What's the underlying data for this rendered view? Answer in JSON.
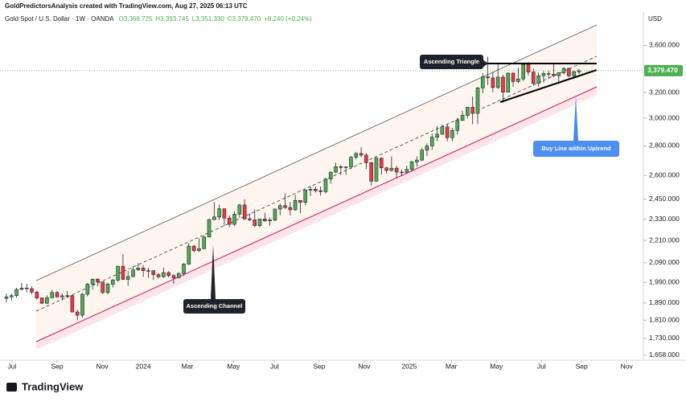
{
  "chart_data": {
    "type": "candlestick",
    "attribution": "GoldPredictorsAnalysis created with TradingView.com, Aug 27, 2025 06:13 UTC",
    "title": "Gold Spot / U.S. Dollar · 1W · OANDA",
    "ohlc_labels": [
      "O3,368.725",
      "H3,393.745",
      "L3,351.330",
      "C3,379.470"
    ],
    "change_label": "+8.240 (+0.24%)",
    "currency": "USD",
    "brand": "TradingView",
    "annotations": [
      "Ascending Triangle",
      "Ascending Channel",
      "Buy Line within Uptrend"
    ],
    "last_price": {
      "value": 3379.47,
      "label": "3,379.470"
    },
    "up_color": "#4caf50",
    "down_color": "#f23645",
    "log_scale": true,
    "ylim": [
      1638,
      3913
    ],
    "yticks": [
      {
        "value": 3600,
        "label": "3,600.000"
      },
      {
        "value": 3200,
        "label": "3,200.000"
      },
      {
        "value": 3000,
        "label": "3,000.000"
      },
      {
        "value": 2800,
        "label": "2,800.000"
      },
      {
        "value": 2600,
        "label": "2,600.000"
      },
      {
        "value": 2450,
        "label": "2,450.000"
      },
      {
        "value": 2330,
        "label": "2,330.000"
      },
      {
        "value": 2210,
        "label": "2,210.000"
      },
      {
        "value": 2090,
        "label": "2,090.000"
      },
      {
        "value": 1990,
        "label": "1,990.000"
      },
      {
        "value": 1890,
        "label": "1,890.000"
      },
      {
        "value": 1810,
        "label": "1,810.000"
      },
      {
        "value": 1730,
        "label": "1,730.000"
      },
      {
        "value": 1658,
        "label": "1,658.000"
      }
    ],
    "xlim": [
      -1.27,
      125.7
    ],
    "xticks": [
      {
        "value": 1.1,
        "label": "Jul"
      },
      {
        "value": 10,
        "label": "Sep"
      },
      {
        "value": 18.9,
        "label": "Nov"
      },
      {
        "value": 27,
        "label": "2024"
      },
      {
        "value": 35.7,
        "label": "Mar"
      },
      {
        "value": 44.8,
        "label": "May"
      },
      {
        "value": 52.9,
        "label": "Jul"
      },
      {
        "value": 61.7,
        "label": "Sep"
      },
      {
        "value": 70.6,
        "label": "Nov"
      },
      {
        "value": 79.5,
        "label": "2025"
      },
      {
        "value": 87.8,
        "label": "Mar"
      },
      {
        "value": 96.7,
        "label": "May"
      },
      {
        "value": 105.6,
        "label": "Jul"
      },
      {
        "value": 113.5,
        "label": "Sep"
      },
      {
        "value": 122.4,
        "label": "Nov"
      }
    ],
    "open": [
      1912,
      1919,
      1925,
      1955,
      1962,
      1959,
      1942,
      1914,
      1889,
      1915,
      1940,
      1919,
      1924,
      1925,
      1848,
      1833,
      1932,
      1981,
      2006,
      1992,
      1940,
      1981,
      2001,
      2072,
      2005,
      2019,
      2053,
      2063,
      2049,
      2049,
      2029,
      2018,
      2039,
      2024,
      2013,
      2035,
      2083,
      2179,
      2155,
      2165,
      2229,
      2329,
      2344,
      2392,
      2337,
      2301,
      2360,
      2415,
      2333,
      2327,
      2293,
      2332,
      2321,
      2326,
      2391,
      2411,
      2400,
      2386,
      2443,
      2431,
      2507,
      2512,
      2503,
      2497,
      2577,
      2622,
      2658,
      2653,
      2656,
      2721,
      2747,
      2736,
      2685,
      2563,
      2715,
      2650,
      2633,
      2648,
      2622,
      2621,
      2640,
      2690,
      2702,
      2770,
      2800,
      2861,
      2883,
      2936,
      2858,
      2910,
      2984,
      3022,
      3084,
      3037,
      3237,
      3327,
      3319,
      3240,
      3325,
      3202,
      3358,
      3289,
      3310,
      3433,
      3368,
      3274,
      3337,
      3355,
      3350,
      3337,
      3362,
      3398,
      3336,
      3368.725
    ],
    "high": [
      1935,
      1935,
      1963,
      1987,
      1982,
      1971,
      1948,
      1917,
      1926,
      1953,
      1947,
      1936,
      1947,
      1928,
      1859,
      1937,
      1987,
      2009,
      2010,
      1993,
      1988,
      2008,
      2075,
      2135,
      2048,
      2071,
      2088,
      2078,
      2063,
      2043,
      2036,
      2065,
      2047,
      2032,
      2041,
      2088,
      2195,
      2185,
      2222,
      2236,
      2332,
      2431,
      2417,
      2395,
      2353,
      2378,
      2422,
      2450,
      2364,
      2388,
      2335,
      2368,
      2340,
      2393,
      2424,
      2484,
      2433,
      2477,
      2441,
      2509,
      2531,
      2529,
      2529,
      2585,
      2625,
      2685,
      2670,
      2661,
      2730,
      2758,
      2790,
      2750,
      2690,
      2721,
      2721,
      2657,
      2726,
      2664,
      2640,
      2665,
      2697,
      2726,
      2786,
      2817,
      2886,
      2942,
      2954,
      2956,
      2930,
      3004,
      3057,
      3086,
      3168,
      3245,
      3358,
      3500,
      3367,
      3435,
      3345,
      3365,
      3368,
      3403,
      3446,
      3452,
      3398,
      3365,
      3375,
      3377,
      3439,
      3363,
      3409,
      3405,
      3379,
      3393.745
    ],
    "low": [
      1893,
      1902,
      1915,
      1952,
      1942,
      1931,
      1906,
      1885,
      1884,
      1913,
      1915,
      1901,
      1913,
      1846,
      1810,
      1823,
      1922,
      1955,
      1971,
      1933,
      1931,
      1965,
      1993,
      2002,
      1973,
      2017,
      2049,
      2017,
      2013,
      2002,
      2010,
      2013,
      2015,
      1984,
      2011,
      2024,
      2079,
      2146,
      2146,
      2163,
      2228,
      2325,
      2326,
      2291,
      2285,
      2291,
      2340,
      2325,
      2320,
      2286,
      2286,
      2316,
      2293,
      2319,
      2353,
      2392,
      2353,
      2381,
      2365,
      2414,
      2470,
      2491,
      2472,
      2485,
      2547,
      2615,
      2603,
      2605,
      2643,
      2707,
      2722,
      2643,
      2536,
      2560,
      2605,
      2613,
      2626,
      2583,
      2596,
      2614,
      2624,
      2657,
      2696,
      2730,
      2773,
      2832,
      2880,
      2832,
      2832,
      2880,
      2982,
      3000,
      2956,
      2957,
      3194,
      3260,
      3202,
      3228,
      3120,
      3205,
      3245,
      3276,
      3294,
      3340,
      3255,
      3247,
      3282,
      3310,
      3325,
      3268,
      3347,
      3324,
      3312,
      3351.33
    ],
    "close": [
      1919,
      1925,
      1955,
      1962,
      1959,
      1942,
      1914,
      1889,
      1915,
      1940,
      1919,
      1924,
      1925,
      1848,
      1833,
      1932,
      1981,
      2006,
      1992,
      1940,
      1981,
      2001,
      2072,
      2005,
      2019,
      2053,
      2063,
      2049,
      2049,
      2029,
      2018,
      2039,
      2024,
      2013,
      2035,
      2083,
      2179,
      2155,
      2165,
      2229,
      2329,
      2344,
      2392,
      2337,
      2301,
      2360,
      2415,
      2333,
      2327,
      2293,
      2332,
      2321,
      2326,
      2391,
      2411,
      2400,
      2386,
      2443,
      2431,
      2507,
      2512,
      2503,
      2497,
      2577,
      2622,
      2658,
      2653,
      2656,
      2721,
      2747,
      2736,
      2685,
      2563,
      2715,
      2650,
      2633,
      2648,
      2622,
      2621,
      2640,
      2690,
      2702,
      2770,
      2800,
      2861,
      2883,
      2936,
      2858,
      2910,
      2984,
      3022,
      3084,
      3037,
      3237,
      3327,
      3319,
      3240,
      3325,
      3202,
      3358,
      3289,
      3310,
      3433,
      3368,
      3274,
      3337,
      3355,
      3350,
      3337,
      3362,
      3398,
      3336,
      3371,
      3379.47
    ]
  }
}
